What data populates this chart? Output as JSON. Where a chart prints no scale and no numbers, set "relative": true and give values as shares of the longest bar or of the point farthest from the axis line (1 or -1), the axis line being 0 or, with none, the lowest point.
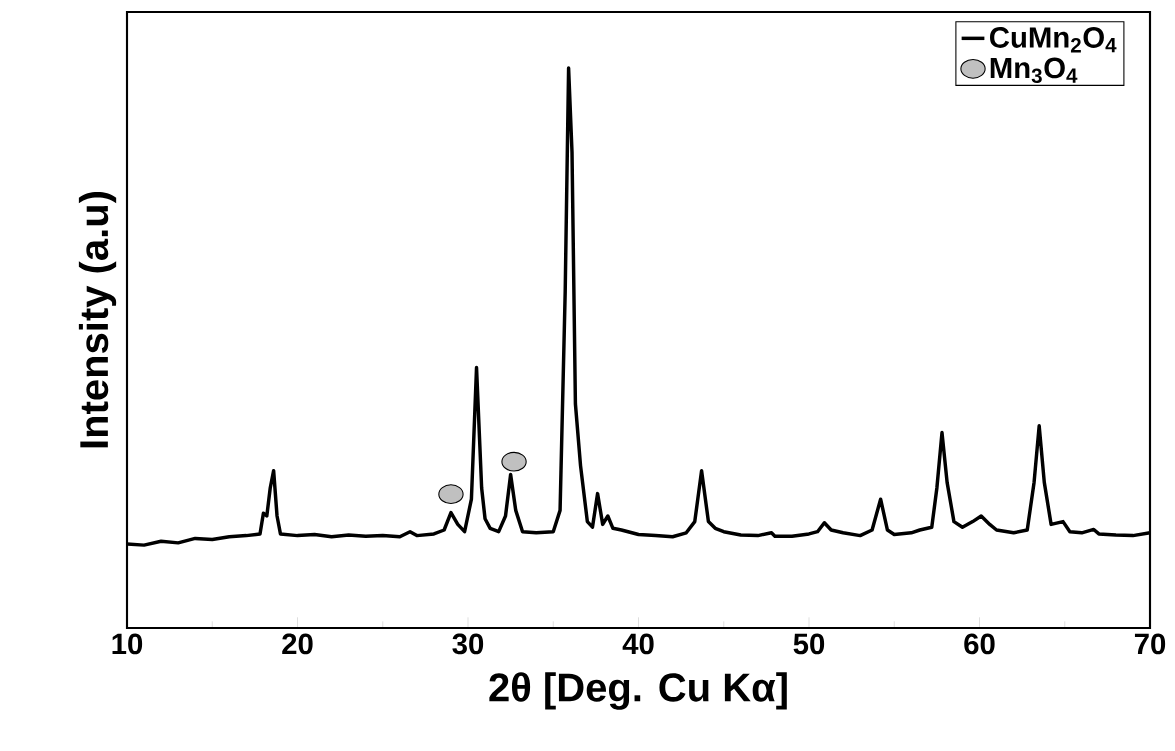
{
  "chart_data": {
    "type": "line",
    "relative": true,
    "xlabel": "2θ [Deg. Cu Kα]",
    "ylabel": "Intensity (a.u)",
    "xlim": [
      10,
      70
    ],
    "xticks": [
      10,
      20,
      30,
      40,
      50,
      60,
      70
    ],
    "legend": "top right",
    "grid": false,
    "series": [
      {
        "name": "CuMn$_{2}$O$_{4}$",
        "color": "#000000",
        "marker": "none",
        "line_style": "solid",
        "x": [
          10.0,
          11.0,
          12.0,
          13.0,
          14.0,
          15.0,
          16.0,
          17.0,
          17.8,
          18.0,
          18.2,
          18.4,
          18.6,
          18.8,
          19.0,
          20.0,
          21.0,
          22.0,
          23.0,
          24.0,
          25.0,
          26.0,
          26.6,
          27.0,
          28.0,
          28.6,
          29.0,
          29.4,
          29.8,
          30.2,
          30.5,
          30.8,
          31.0,
          31.3,
          31.8,
          32.2,
          32.5,
          32.8,
          33.2,
          34.0,
          35.0,
          35.4,
          35.7,
          35.9,
          36.1,
          36.3,
          36.6,
          37.0,
          37.3,
          37.6,
          37.9,
          38.2,
          38.5,
          39.0,
          40.0,
          41.0,
          42.0,
          42.8,
          43.3,
          43.7,
          44.1,
          44.5,
          45.0,
          46.0,
          47.0,
          47.8,
          48.0,
          49.0,
          50.0,
          50.5,
          50.9,
          51.3,
          52.0,
          53.0,
          53.7,
          54.2,
          54.6,
          55.0,
          56.0,
          56.5,
          57.2,
          57.5,
          57.8,
          58.1,
          58.5,
          59.0,
          59.6,
          60.1,
          60.6,
          61.0,
          62.0,
          62.8,
          63.2,
          63.5,
          63.8,
          64.2,
          64.9,
          65.3,
          66.0,
          66.7,
          67.0,
          68.0,
          69.0,
          70.0
        ],
        "values": [
          0.15,
          0.148,
          0.155,
          0.152,
          0.16,
          0.158,
          0.163,
          0.165,
          0.168,
          0.205,
          0.2,
          0.25,
          0.281,
          0.2,
          0.168,
          0.165,
          0.167,
          0.163,
          0.166,
          0.164,
          0.165,
          0.163,
          0.172,
          0.165,
          0.168,
          0.175,
          0.206,
          0.185,
          0.172,
          0.23,
          0.465,
          0.25,
          0.195,
          0.178,
          0.172,
          0.2,
          0.274,
          0.21,
          0.172,
          0.17,
          0.172,
          0.21,
          0.6,
          1.0,
          0.85,
          0.4,
          0.29,
          0.19,
          0.18,
          0.24,
          0.185,
          0.2,
          0.178,
          0.175,
          0.167,
          0.165,
          0.163,
          0.17,
          0.19,
          0.281,
          0.19,
          0.178,
          0.172,
          0.166,
          0.165,
          0.17,
          0.164,
          0.164,
          0.168,
          0.172,
          0.188,
          0.175,
          0.17,
          0.165,
          0.175,
          0.23,
          0.175,
          0.167,
          0.17,
          0.175,
          0.18,
          0.25,
          0.349,
          0.26,
          0.19,
          0.18,
          0.19,
          0.2,
          0.185,
          0.175,
          0.17,
          0.175,
          0.26,
          0.361,
          0.26,
          0.185,
          0.19,
          0.172,
          0.17,
          0.176,
          0.168,
          0.166,
          0.165,
          0.17
        ]
      },
      {
        "name": "Mn$_{3}$O$_{4}$",
        "type": "scatter",
        "color": "#c0c0c0",
        "marker": "circle",
        "x": [
          29.0,
          32.7
        ],
        "values": [
          0.239,
          0.297
        ]
      }
    ]
  }
}
